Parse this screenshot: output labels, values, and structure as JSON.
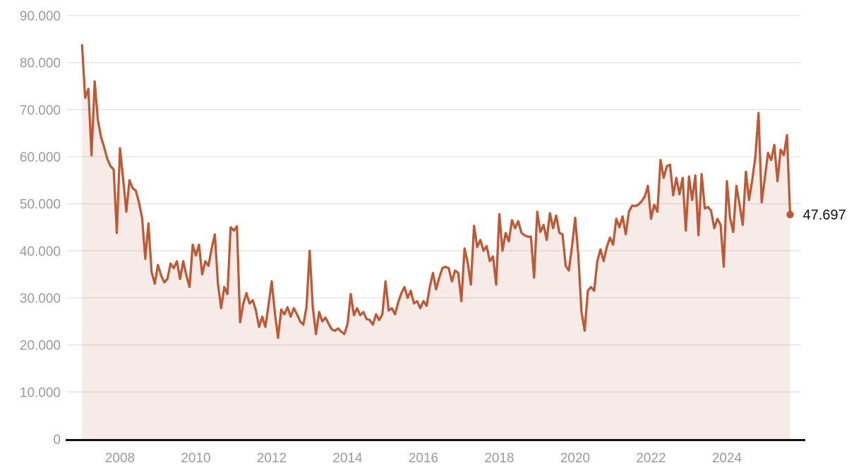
{
  "chart_data": {
    "type": "area",
    "title": "",
    "xlabel": "",
    "ylabel": "",
    "x_start": 2007.0,
    "points_per_year": 12,
    "xlim": [
      2006.95,
      2025.85
    ],
    "ylim": [
      0,
      90000
    ],
    "grid": true,
    "legend_position": "none",
    "y_ticks": [
      0,
      10000,
      20000,
      30000,
      40000,
      50000,
      60000,
      70000,
      80000,
      90000
    ],
    "y_tick_labels": [
      "0",
      "10.000",
      "20.000",
      "30.000",
      "40.000",
      "50.000",
      "60.000",
      "70.000",
      "80.000",
      "90.000"
    ],
    "x_tick_years": [
      2008,
      2010,
      2012,
      2014,
      2016,
      2018,
      2020,
      2022,
      2024
    ],
    "x_tick_labels": [
      "2008",
      "2010",
      "2012",
      "2014",
      "2016",
      "2018",
      "2020",
      "2022",
      "2024"
    ],
    "end_value": 47697,
    "end_label": "47.697",
    "series": [
      {
        "name": "monthly-value",
        "values": [
          83700,
          72500,
          74400,
          60300,
          76000,
          67800,
          64200,
          62000,
          59500,
          58000,
          57300,
          43800,
          61800,
          55300,
          48300,
          55000,
          53300,
          52800,
          50300,
          47000,
          38300,
          45800,
          35500,
          33000,
          37000,
          34800,
          33300,
          34000,
          37300,
          36300,
          37800,
          34000,
          37800,
          34800,
          32300,
          41300,
          39000,
          41300,
          35000,
          37800,
          36800,
          40500,
          43500,
          33000,
          27800,
          32300,
          30800,
          45000,
          44300,
          45200,
          24800,
          28800,
          31000,
          28800,
          29500,
          27300,
          23800,
          26000,
          23800,
          28500,
          33500,
          26800,
          21500,
          27500,
          26500,
          28000,
          26000,
          27800,
          26500,
          25000,
          24300,
          28000,
          40000,
          28000,
          22300,
          27000,
          25000,
          25800,
          24500,
          23300,
          23000,
          23500,
          22800,
          22300,
          24500,
          30800,
          26300,
          27800,
          26300,
          27000,
          25500,
          25300,
          24300,
          26500,
          25300,
          26500,
          33500,
          27300,
          27800,
          26500,
          29000,
          31000,
          32300,
          30000,
          31500,
          28800,
          29300,
          27800,
          29300,
          28300,
          32300,
          35300,
          31800,
          34300,
          36300,
          36600,
          36300,
          33500,
          35800,
          35300,
          29300,
          40500,
          37500,
          32800,
          45300,
          40800,
          42300,
          40000,
          41000,
          37800,
          38800,
          32800,
          47800,
          40000,
          43800,
          42000,
          46500,
          44800,
          46300,
          43800,
          43300,
          43000,
          43000,
          34300,
          48300,
          44000,
          45500,
          42300,
          48000,
          44800,
          47500,
          43800,
          43500,
          36800,
          35800,
          41000,
          47000,
          39000,
          27000,
          23000,
          31500,
          32300,
          31500,
          37800,
          40300,
          37800,
          40800,
          42800,
          41300,
          46800,
          45000,
          47300,
          43500,
          48300,
          49600,
          49500,
          49800,
          50500,
          51500,
          53800,
          46800,
          49800,
          48300,
          59300,
          55500,
          58000,
          58300,
          51800,
          55500,
          52000,
          55500,
          44300,
          55800,
          50800,
          56000,
          43300,
          56300,
          49000,
          49300,
          48500,
          44800,
          46800,
          45500,
          36600,
          54800,
          47000,
          44000,
          53800,
          49800,
          45500,
          56800,
          50800,
          55000,
          60000,
          69300,
          50300,
          55500,
          60800,
          59300,
          62500,
          54800,
          61500,
          60300,
          64600,
          47697
        ]
      }
    ],
    "colors": {
      "line": "#bc5a38",
      "area_fill": "rgba(188,90,56,0.12)",
      "grid": "#e4e4e4",
      "axis": "#111111",
      "tick_text": "#9b9b9b",
      "label_text": "#111111"
    }
  }
}
